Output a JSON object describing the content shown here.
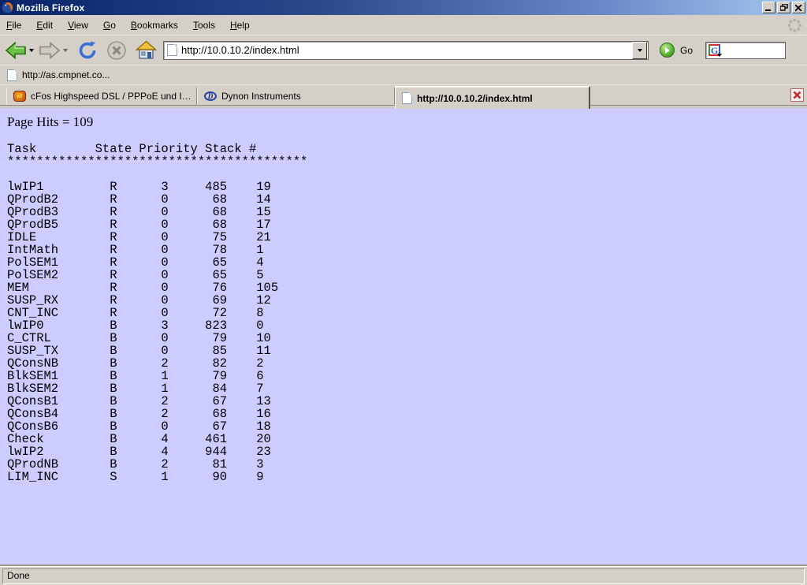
{
  "window": {
    "title": "Mozilla Firefox",
    "controls": [
      "minimize",
      "restore",
      "close"
    ]
  },
  "menu_bar": {
    "items": [
      "File",
      "Edit",
      "View",
      "Go",
      "Bookmarks",
      "Tools",
      "Help"
    ]
  },
  "navigation": {
    "url_value": "http://10.0.10.2/index.html",
    "go_label": "Go",
    "icons": [
      "back-icon",
      "back-dropdown-icon",
      "forward-icon",
      "forward-dropdown-icon",
      "reload-icon",
      "stop-icon",
      "home-icon",
      "url-page-icon",
      "url-dropdown-icon",
      "go-icon",
      "google-search-icon",
      "search-dropdown-icon",
      "throbber-icon"
    ]
  },
  "bookmarks_bar": {
    "items": [
      {
        "label": "http://as.cmpnet.co...",
        "icon": "page-icon"
      }
    ]
  },
  "tab_bar": {
    "tabs": [
      {
        "label": "cFos Highspeed DSL / PPPoE und ISDN CAP...",
        "icon": "cfos",
        "active": false
      },
      {
        "label": "Dynon Instruments",
        "icon": "dynon",
        "active": false
      },
      {
        "label": "http://10.0.10.2/index.html",
        "icon": "page",
        "active": true
      }
    ],
    "close_icon": "close-tab-icon"
  },
  "page": {
    "hits_text": "Page Hits = 109",
    "task_table": {
      "columns": [
        "Task",
        "State",
        "Priority",
        "Stack",
        "#"
      ],
      "separator_char": "*",
      "separator_length": 41,
      "rows": [
        [
          "lwIP1",
          "R",
          3,
          485,
          19
        ],
        [
          "QProdB2",
          "R",
          0,
          68,
          14
        ],
        [
          "QProdB3",
          "R",
          0,
          68,
          15
        ],
        [
          "QProdB5",
          "R",
          0,
          68,
          17
        ],
        [
          "IDLE",
          "R",
          0,
          75,
          21
        ],
        [
          "IntMath",
          "R",
          0,
          78,
          1
        ],
        [
          "PolSEM1",
          "R",
          0,
          65,
          4
        ],
        [
          "PolSEM2",
          "R",
          0,
          65,
          5
        ],
        [
          "MEM",
          "R",
          0,
          76,
          105
        ],
        [
          "SUSP_RX",
          "R",
          0,
          69,
          12
        ],
        [
          "CNT_INC",
          "R",
          0,
          72,
          8
        ],
        [
          "lwIP0",
          "B",
          3,
          823,
          0
        ],
        [
          "C_CTRL",
          "B",
          0,
          79,
          10
        ],
        [
          "SUSP_TX",
          "B",
          0,
          85,
          11
        ],
        [
          "QConsNB",
          "B",
          2,
          82,
          2
        ],
        [
          "BlkSEM1",
          "B",
          1,
          79,
          6
        ],
        [
          "BlkSEM2",
          "B",
          1,
          84,
          7
        ],
        [
          "QConsB1",
          "B",
          2,
          67,
          13
        ],
        [
          "QConsB4",
          "B",
          2,
          68,
          16
        ],
        [
          "QConsB6",
          "B",
          0,
          67,
          18
        ],
        [
          "Check",
          "B",
          4,
          461,
          20
        ],
        [
          "lwIP2",
          "B",
          4,
          944,
          23
        ],
        [
          "QProdNB",
          "B",
          2,
          81,
          3
        ],
        [
          "LIM_INC",
          "S",
          1,
          90,
          9
        ]
      ]
    }
  },
  "status_bar": {
    "text": "Done"
  },
  "colors": {
    "page_background": "#ccccff",
    "chrome": "#d4d0c8",
    "titlebar_left": "#0a246a",
    "titlebar_right": "#a6caf0",
    "close_red": "#cc2a2a",
    "back_green": "#57b32f"
  }
}
